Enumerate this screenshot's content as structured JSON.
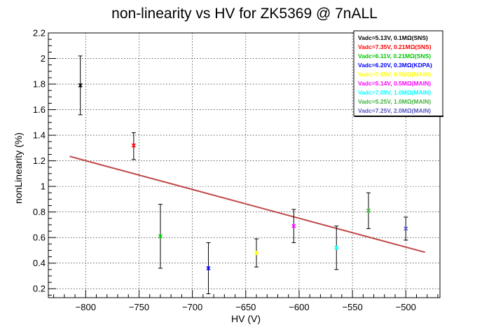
{
  "chart_data": {
    "type": "scatter",
    "title": "non-linearity vs HV for ZK5369 @ 7nALL",
    "xlabel": "HV (V)",
    "ylabel": "nonLinearity (%)",
    "xlim": [
      -835,
      -468
    ],
    "ylim": [
      0.13,
      2.2
    ],
    "x_ticks": [
      -800,
      -750,
      -700,
      -650,
      -600,
      -550,
      -500
    ],
    "x_tick_labels": [
      "−800",
      "−750",
      "−700",
      "−650",
      "−600",
      "−550",
      "−500"
    ],
    "y_ticks": [
      0.2,
      0.4,
      0.6,
      0.8,
      1,
      1.2,
      1.4,
      1.6,
      1.8,
      2,
      2.2
    ],
    "y_tick_labels": [
      "0.2",
      "0.4",
      "0.6",
      "0.8",
      "1",
      "1.2",
      "1.4",
      "1.6",
      "1.8",
      "2",
      "2.2"
    ],
    "grid": true,
    "legend_position": "top-right",
    "series": [
      {
        "name": "Vadc=5.13V, 0.1MΩ(SNS)",
        "color": "#000000",
        "x": -805,
        "y": 1.79,
        "yerr_low": 0.23,
        "yerr_high": 0.23
      },
      {
        "name": "Vadc=7.35V, 0.21MΩ(SNS)",
        "color": "#ff0000",
        "x": -755,
        "y": 1.32,
        "yerr_low": 0.11,
        "yerr_high": 0.1
      },
      {
        "name": "Vadc=6.11V, 0.21MΩ(SNS)",
        "color": "#00c800",
        "x": -730,
        "y": 0.61,
        "yerr_low": 0.25,
        "yerr_high": 0.25
      },
      {
        "name": "Vadc=6.20V, 0.3MΩ(KDPA)",
        "color": "#0000ff",
        "x": -685,
        "y": 0.36,
        "yerr_low": 0.2,
        "yerr_high": 0.2
      },
      {
        "name": "Vadc=7.09V, 0.5MΩ(MAIN)",
        "color": "#ffff00",
        "x": -640,
        "y": 0.48,
        "yerr_low": 0.11,
        "yerr_high": 0.11
      },
      {
        "name": "Vadc=5.14V, 0.5MΩ(MAIN)",
        "color": "#ff00ff",
        "x": -605,
        "y": 0.69,
        "yerr_low": 0.13,
        "yerr_high": 0.13
      },
      {
        "name": "Vadc=7.09V, 1.0MΩ(MAIN)",
        "color": "#00ffff",
        "x": -565,
        "y": 0.52,
        "yerr_low": 0.17,
        "yerr_high": 0.17
      },
      {
        "name": "Vadc=5.25V, 1.0MΩ(MAIN)",
        "color": "#3fb33f",
        "x": -535,
        "y": 0.81,
        "yerr_low": 0.14,
        "yerr_high": 0.14
      },
      {
        "name": "Vadc=7.25V, 2.0MΩ(MAIN)",
        "color": "#5454c0",
        "x": -500,
        "y": 0.67,
        "yerr_low": 0.09,
        "yerr_high": 0.09
      }
    ],
    "fit_line": {
      "color": "#c04848",
      "x": [
        -815,
        -482
      ],
      "y": [
        1.235,
        0.485
      ]
    }
  }
}
